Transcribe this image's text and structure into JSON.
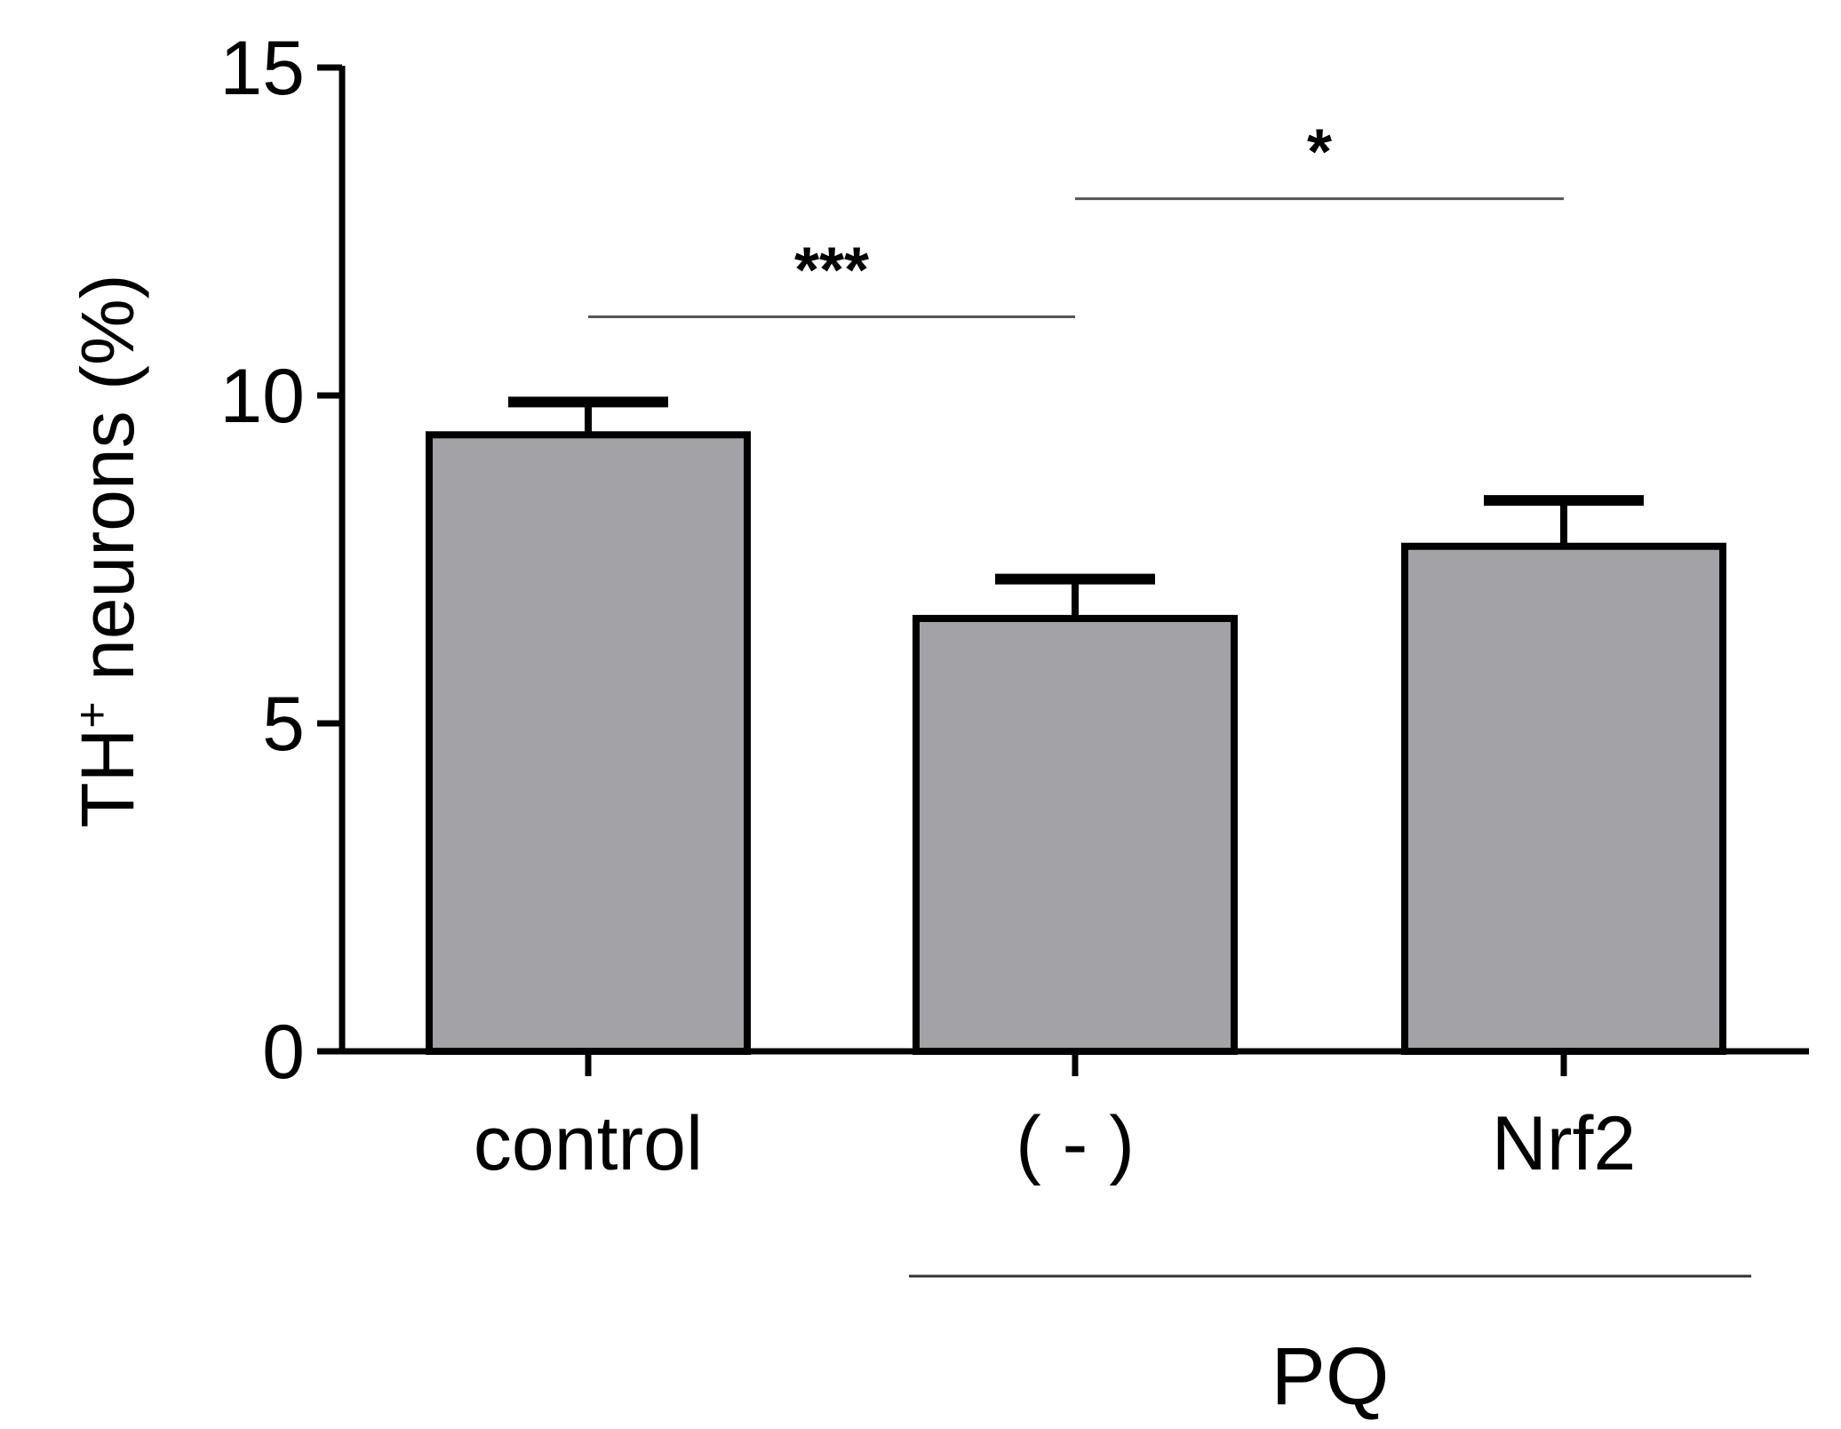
{
  "chart_data": {
    "type": "bar",
    "categories": [
      "control",
      "( - )",
      "Nrf2"
    ],
    "values": [
      9.4,
      6.6,
      7.7
    ],
    "errors": [
      0.5,
      0.6,
      0.7
    ],
    "ylabel_main": "TH",
    "ylabel_sup": "+",
    "ylabel_rest": " neurons (%)",
    "ylim": [
      0,
      15
    ],
    "yticks": [
      0,
      5,
      10,
      15
    ],
    "ytick_labels": [
      "0",
      "5",
      "10",
      "15"
    ],
    "group_label": "PQ",
    "group_members": [
      "( - )",
      "Nrf2"
    ],
    "significance": [
      {
        "from": "control",
        "to": "( - )",
        "label": "***",
        "level": 11.2
      },
      {
        "from": "( - )",
        "to": "Nrf2",
        "label": "*",
        "level": 13.0
      }
    ],
    "bar_color": "#a3a2a7",
    "grid": false
  }
}
